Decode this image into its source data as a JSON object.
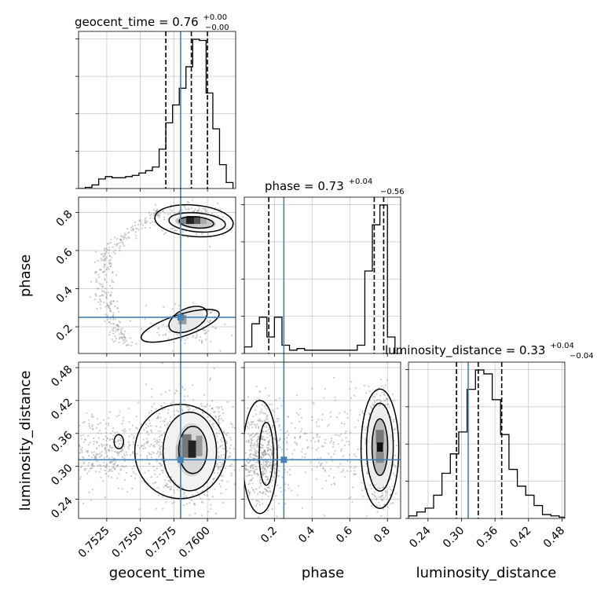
{
  "chart_data": {
    "type": "corner",
    "parameters": [
      "geocent_time",
      "phase",
      "luminosity_distance"
    ],
    "truth": {
      "geocent_time": 0.758,
      "phase": 0.25,
      "luminosity_distance": 0.312
    },
    "colors": {
      "truth": "#4682b4",
      "hist": "#000000",
      "grid": "#c8c8c8",
      "points": "#8c8c8c"
    },
    "grid": true,
    "diagonal": [
      {
        "param": "geocent_time",
        "title": {
          "lead": "geocent_time = 0.76",
          "sup": "+0.00",
          "sub": "−0.00"
        },
        "range": [
          0.7504,
          0.7621
        ],
        "ticks": [
          0.7525,
          0.755,
          0.7575,
          0.76
        ],
        "tick_labels": [
          "0.7525",
          "0.7550",
          "0.7575",
          "0.7600"
        ],
        "quantiles": [
          0.7569,
          0.7588,
          0.76
        ],
        "bins": [
          0.7504,
          0.7509,
          0.7514,
          0.7519,
          0.7524,
          0.7529,
          0.7534,
          0.7539,
          0.7544,
          0.7549,
          0.7554,
          0.7559,
          0.7564,
          0.7569,
          0.7574,
          0.7579,
          0.7584,
          0.7589,
          0.7594,
          0.7599,
          0.7604,
          0.7609,
          0.7614,
          0.7619
        ],
        "counts": [
          0,
          1,
          3,
          8,
          10,
          9,
          9,
          10,
          11,
          13,
          15,
          18,
          33,
          55,
          70,
          84,
          102,
          125,
          124,
          80,
          50,
          20,
          5
        ]
      },
      {
        "param": "phase",
        "title": {
          "lead": "phase = 0.73",
          "sup": "+0.04",
          "sub": "−0.56"
        },
        "range": [
          0.04,
          0.87
        ],
        "ticks": [
          0.2,
          0.4,
          0.6,
          0.8
        ],
        "tick_labels": [
          "0.2",
          "0.4",
          "0.6",
          "0.8"
        ],
        "quantiles": [
          0.17,
          0.73,
          0.78
        ],
        "bins": [
          0.04,
          0.08,
          0.12,
          0.16,
          0.2,
          0.24,
          0.28,
          0.32,
          0.36,
          0.4,
          0.44,
          0.48,
          0.52,
          0.56,
          0.6,
          0.64,
          0.68,
          0.72,
          0.76,
          0.8,
          0.84,
          0.87
        ],
        "counts": [
          4,
          18,
          22,
          10,
          22,
          5,
          2,
          3,
          2,
          2,
          2,
          2,
          2,
          2,
          2,
          5,
          50,
          78,
          90,
          10,
          0
        ]
      },
      {
        "param": "luminosity_distance",
        "title": {
          "lead": "luminosity_distance = 0.33",
          "sup": "+0.04",
          "sub": "−0.04"
        },
        "range": [
          0.205,
          0.485
        ],
        "ticks": [
          0.24,
          0.3,
          0.36,
          0.42,
          0.48
        ],
        "tick_labels": [
          "0.24",
          "0.30",
          "0.36",
          "0.42",
          "0.48"
        ],
        "quantiles": [
          0.291,
          0.33,
          0.372
        ],
        "bins": [
          0.205,
          0.22,
          0.235,
          0.25,
          0.265,
          0.28,
          0.295,
          0.31,
          0.325,
          0.34,
          0.355,
          0.37,
          0.385,
          0.4,
          0.415,
          0.43,
          0.445,
          0.46,
          0.475,
          0.485
        ],
        "counts": [
          2,
          5,
          8,
          18,
          35,
          50,
          67,
          100,
          115,
          112,
          92,
          65,
          38,
          25,
          18,
          10,
          3,
          2,
          1
        ]
      }
    ],
    "offdiagonal": [
      {
        "x": "geocent_time",
        "y": "phase",
        "ylim": [
          0.06,
          0.88
        ],
        "yticks": [
          0.2,
          0.4,
          0.6,
          0.8
        ],
        "ytick_labels": [
          "0.2",
          "0.4",
          "0.6",
          "0.8"
        ],
        "density_peak": {
          "x": 0.759,
          "y": 0.76
        },
        "density_peak_secondary": {
          "x": 0.7582,
          "y": 0.23
        }
      },
      {
        "x": "geocent_time",
        "y": "luminosity_distance",
        "ylim": [
          0.205,
          0.49
        ],
        "yticks": [
          0.24,
          0.3,
          0.36,
          0.42,
          0.48
        ],
        "ytick_labels": [
          "0.24",
          "0.30",
          "0.36",
          "0.42",
          "0.48"
        ],
        "density_peak": {
          "x": 0.7588,
          "y": 0.33
        }
      },
      {
        "x": "phase",
        "y": "luminosity_distance",
        "density_peak": {
          "x": 0.76,
          "y": 0.335
        },
        "density_peak_secondary": {
          "x": 0.14,
          "y": 0.32
        }
      }
    ],
    "axis_labels": {
      "x": [
        "geocent_time",
        "phase",
        "luminosity_distance"
      ],
      "y": [
        "phase",
        "luminosity_distance"
      ]
    }
  }
}
